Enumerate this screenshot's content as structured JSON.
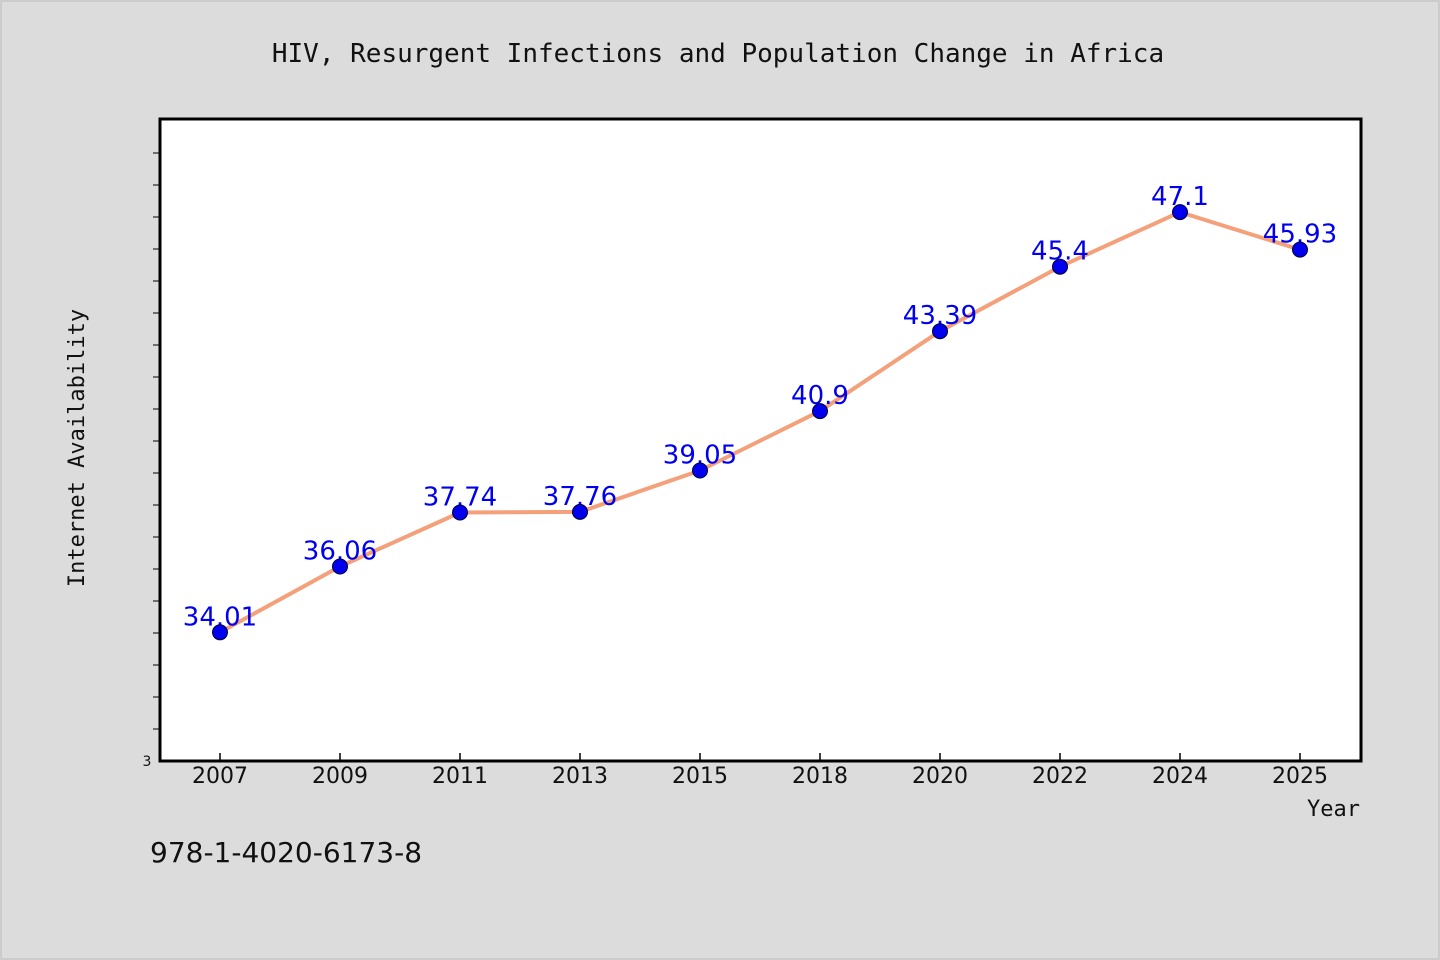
{
  "chart_data": {
    "type": "line",
    "title": "HIV, Resurgent Infections and Population Change in Africa",
    "xlabel": "Year",
    "ylabel": "Internet Availability",
    "categories": [
      "2007",
      "2009",
      "2011",
      "2013",
      "2015",
      "2018",
      "2020",
      "2022",
      "2024",
      "2025"
    ],
    "series": [
      {
        "values": [
          34.01,
          36.06,
          37.74,
          37.76,
          39.05,
          40.9,
          43.39,
          45.4,
          47.1,
          45.93
        ],
        "labels": [
          "34.01",
          "36.06",
          "37.74",
          "37.76",
          "39.05",
          "40.9",
          "43.39",
          "45.4",
          "47.1",
          "45.93"
        ]
      }
    ],
    "y_tick_labels": [
      "3"
    ],
    "ylim": [
      30,
      50
    ],
    "grid": false,
    "colors": {
      "line": "#f4a07a",
      "marker": "#0000ee",
      "label": "#0000ee",
      "frame": "#000000"
    }
  },
  "footer": {
    "isbn": "978-1-4020-6173-8"
  }
}
